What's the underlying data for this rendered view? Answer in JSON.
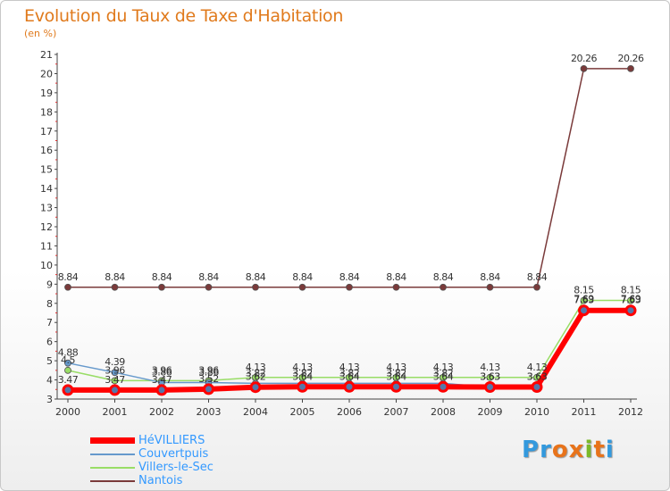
{
  "title": "Evolution du Taux de Taxe d'Habitation",
  "unit": "(en %)",
  "logo": {
    "letters": [
      "P",
      "r",
      "o",
      "x",
      "i",
      "t",
      "i"
    ],
    "colors": [
      "#3399dd",
      "#3399dd",
      "#e8731a",
      "#e8731a",
      "#7ab929",
      "#e8731a",
      "#3399dd"
    ]
  },
  "chart_data": {
    "type": "line",
    "title": "Evolution du Taux de Taxe d'Habitation",
    "ylabel": "(en %)",
    "xlabel": "",
    "x": [
      "2000",
      "2001",
      "2002",
      "2003",
      "2004",
      "2005",
      "2006",
      "2007",
      "2008",
      "2009",
      "2010",
      "2011",
      "2012"
    ],
    "ylim": [
      3,
      21
    ],
    "yticks": [
      3,
      4,
      5,
      6,
      7,
      8,
      9,
      10,
      11,
      12,
      13,
      14,
      15,
      16,
      17,
      18,
      19,
      20,
      21
    ],
    "grid": false,
    "legend": "bottom-left",
    "series": [
      {
        "name": "HéVILLIERS",
        "color": "#ff0000",
        "values": [
          3.47,
          3.47,
          3.47,
          3.52,
          3.62,
          3.64,
          3.64,
          3.64,
          3.64,
          3.63,
          3.63,
          7.63,
          7.63
        ],
        "labels": [
          "3.47",
          "3.47",
          "3.47",
          "3.52",
          "3.62",
          "3.64",
          "3.64",
          "3.64",
          "3.64",
          "3.63",
          "3.63",
          "7.63",
          "7.63"
        ]
      },
      {
        "name": "Couvertpuis",
        "color": "#6699cc",
        "values": [
          4.88,
          4.39,
          3.86,
          3.86,
          3.82,
          3.82,
          3.82,
          3.82,
          3.82,
          3.63,
          3.63,
          7.69,
          7.69
        ],
        "labels": [
          "4.88",
          "4.39",
          "3.86",
          "3.86",
          "3.82",
          "3.82",
          "3.82",
          "3.82",
          "3.82",
          "3.63",
          "3.63",
          "7.69",
          "7.69"
        ]
      },
      {
        "name": "Villers-le-Sec",
        "color": "#99dd66",
        "values": [
          4.5,
          3.96,
          3.96,
          3.96,
          4.13,
          4.13,
          4.13,
          4.13,
          4.13,
          4.13,
          4.13,
          8.15,
          8.15
        ],
        "labels": [
          "4.5",
          "3.96",
          "3.96",
          "3.96",
          "4.13",
          "4.13",
          "4.13",
          "4.13",
          "4.13",
          "4.13",
          "4.13",
          "8.15",
          "8.15"
        ]
      },
      {
        "name": "Nantois",
        "color": "#7a3a3a",
        "values": [
          8.84,
          8.84,
          8.84,
          8.84,
          8.84,
          8.84,
          8.84,
          8.84,
          8.84,
          8.84,
          8.84,
          20.26,
          20.26
        ],
        "labels": [
          "8.84",
          "8.84",
          "8.84",
          "8.84",
          "8.84",
          "8.84",
          "8.84",
          "8.84",
          "8.84",
          "8.84",
          "8.84",
          "20.26",
          "20.26"
        ]
      }
    ]
  }
}
